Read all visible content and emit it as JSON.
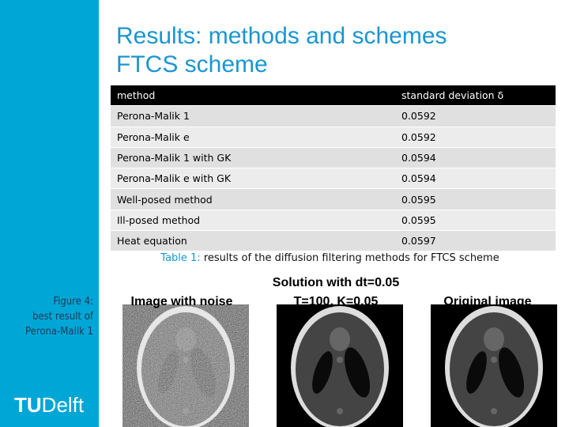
{
  "header": {
    "title": "Results: methods and schemes",
    "subtitle": "FTCS scheme"
  },
  "table": {
    "columns": [
      "method",
      "standard deviation δ"
    ],
    "rows": [
      [
        "Perona-Malik 1",
        "0.0592"
      ],
      [
        "Perona-Malik e",
        "0.0592"
      ],
      [
        "Perona-Malik 1 with GK",
        "0.0594"
      ],
      [
        "Perona-Malik e with GK",
        "0.0594"
      ],
      [
        "Well-posed method",
        "0.0595"
      ],
      [
        "Ill-posed method",
        "0.0595"
      ],
      [
        "Heat equation",
        "0.0597"
      ]
    ]
  },
  "table_caption": {
    "label": "Table 1:",
    "text": "results of the diffusion filtering methods for FTCS scheme"
  },
  "figure": {
    "caption": [
      "Figure 4:",
      "best result of",
      "Perona-Malik 1"
    ],
    "panels": [
      {
        "title": [
          "Image with noise"
        ]
      },
      {
        "title": [
          "Solution with dt=0.05",
          "T=100, K=0.05"
        ]
      },
      {
        "title": [
          "Original image"
        ]
      }
    ]
  },
  "logo": {
    "bold": "TU",
    "text": "Delft"
  }
}
